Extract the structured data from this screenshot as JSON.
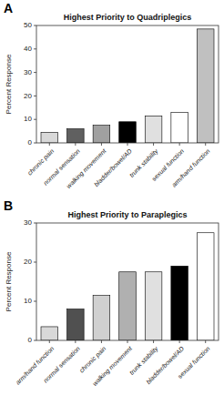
{
  "chart_data": [
    {
      "type": "bar",
      "title": "Highest Priority to Quadriplegics",
      "categories": [
        "chronic pain",
        "normal sensation",
        "walking movement",
        "bladder/bowel/AD",
        "trunk stability",
        "sexual function",
        "arm/hand function"
      ],
      "values": [
        4.5,
        6.0,
        7.5,
        9.0,
        11.5,
        13.0,
        48.5
      ],
      "colors": [
        "#d8d8d8",
        "#606060",
        "#a0a0a0",
        "#000000",
        "#e0e0e0",
        "#ffffff",
        "#c0c0c0"
      ],
      "ylim": [
        0,
        50
      ],
      "yticks": [
        0,
        10,
        20,
        30,
        40,
        50
      ],
      "ylabel": "Percent Response",
      "annotations": [
        "A"
      ]
    },
    {
      "type": "bar",
      "title": "Highest Priority to Paraplegics",
      "categories": [
        "arm/hand function",
        "normal sensation",
        "chronic pain",
        "walking movement",
        "trunk stability",
        "bladder/bowel/AD",
        "sexual function"
      ],
      "values": [
        3.5,
        8.0,
        11.5,
        17.5,
        17.5,
        19.0,
        27.5
      ],
      "colors": [
        "#d8d8d8",
        "#505050",
        "#d0d0d0",
        "#b0b0b0",
        "#e0e0e0",
        "#000000",
        "#ffffff"
      ],
      "ylim": [
        0,
        30
      ],
      "yticks": [
        0,
        10,
        20,
        30
      ],
      "ylabel": "Percent Response",
      "annotations": [
        "B"
      ]
    }
  ]
}
